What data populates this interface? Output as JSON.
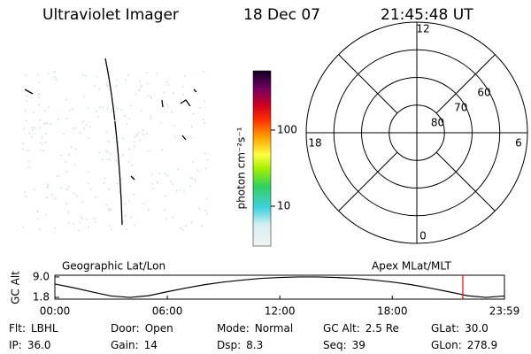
{
  "header": {
    "title": "Ultraviolet Imager",
    "date": "18 Dec 07",
    "time": "21:45:48 UT"
  },
  "chart_data": [
    {
      "type": "colorbar",
      "label": "photon cm⁻²s⁻¹",
      "log": true,
      "clim": [
        3,
        600
      ],
      "ticks": [
        10,
        100
      ]
    },
    {
      "type": "polar",
      "rlim": [
        90,
        50
      ],
      "rings": [
        80,
        70,
        60
      ],
      "mlt_ticks": [
        12,
        18,
        6,
        0
      ]
    },
    {
      "type": "line",
      "left_title": "Geographic Lat/Lon",
      "right_title": "Apex MLat/MLT",
      "ylabel": "GC Alt",
      "xlim": [
        0,
        23.983
      ],
      "ylim": [
        1.2,
        9.6
      ],
      "xticks": [
        {
          "value": 0,
          "label": "00:00"
        },
        {
          "value": 6,
          "label": "06:00"
        },
        {
          "value": 12,
          "label": "12:00"
        },
        {
          "value": 18,
          "label": "18:00"
        },
        {
          "value": 23.983,
          "label": "23:59"
        }
      ],
      "yticks": [
        {
          "value": 9,
          "label": "9.0"
        },
        {
          "value": 1.8,
          "label": "1.8"
        }
      ],
      "x": [
        0,
        1,
        2,
        3,
        4,
        5,
        6,
        7,
        8,
        9,
        10,
        11,
        12,
        13,
        14,
        15,
        16,
        17,
        18,
        19,
        20,
        21,
        22,
        23,
        23.983
      ],
      "values": [
        6.5,
        5.2,
        3.7,
        2.3,
        1.8,
        2.4,
        3.8,
        5.1,
        6.3,
        7.2,
        7.9,
        8.5,
        8.8,
        9.0,
        9.0,
        8.8,
        8.5,
        7.9,
        7.2,
        6.3,
        5.1,
        3.8,
        2.4,
        1.8,
        2.3
      ],
      "color": "#000000",
      "marker_time": 21.763,
      "marker_color": "#ff0000"
    }
  ],
  "footer": {
    "rows": [
      [
        {
          "label": "Flt:",
          "value": "LBHL"
        },
        {
          "label": "Door:",
          "value": "Open"
        },
        {
          "label": "Mode:",
          "value": "Normal"
        },
        {
          "label": "GC Alt:",
          "value": "2.5 Re"
        },
        {
          "label": "GLat:",
          "value": "30.0"
        }
      ],
      [
        {
          "label": "IP:",
          "value": "36.0"
        },
        {
          "label": "Gain:",
          "value": "14"
        },
        {
          "label": "Dsp:",
          "value": "8.3"
        },
        {
          "label": "Seq:",
          "value": "39"
        },
        {
          "label": "GLon:",
          "value": "278.9"
        }
      ]
    ]
  }
}
